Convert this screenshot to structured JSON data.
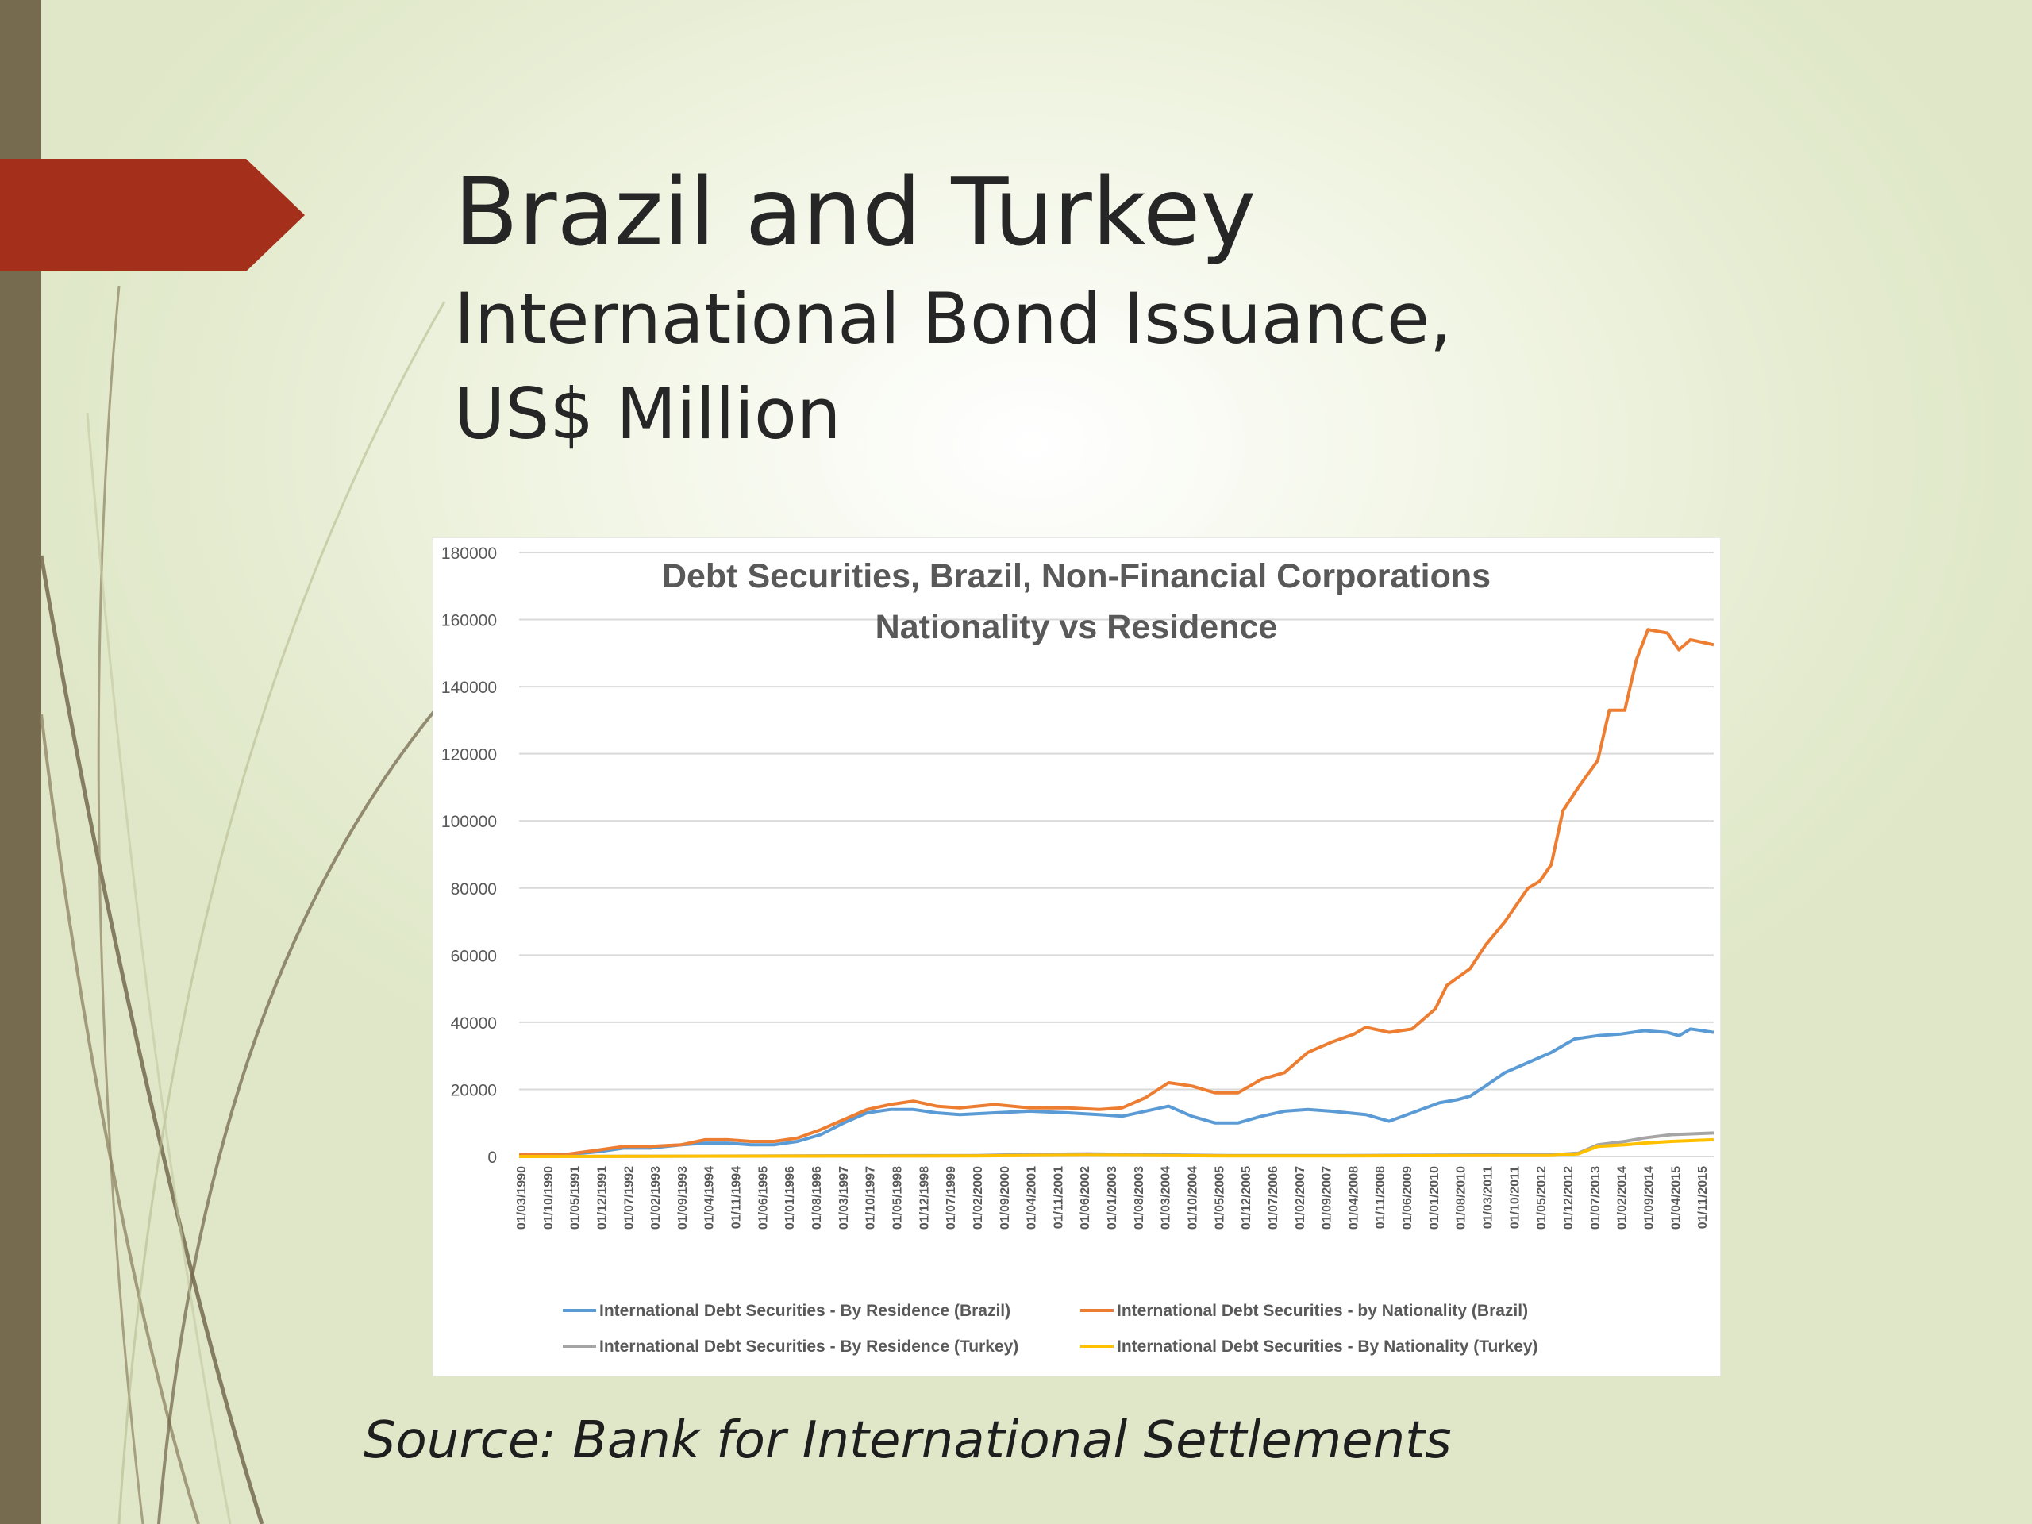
{
  "slide": {
    "title": "Brazil and Turkey",
    "subtitle_line1": "International Bond Issuance,",
    "subtitle_line2": "US$ Million",
    "source": "Source: Bank for International Settlements"
  },
  "colors": {
    "accent_arrow": "#a4301b",
    "side_bar": "#766a4f",
    "series_brazil_residence": "#5b9bd5",
    "series_brazil_nationality": "#ed7d31",
    "series_turkey_residence": "#a5a5a5",
    "series_turkey_nationality": "#ffc000"
  },
  "chart_data": {
    "type": "line",
    "title": "Debt Securities, Brazil, Non-Financial Corporations",
    "subtitle": "Nationality vs Residence",
    "xlabel": "",
    "ylabel": "",
    "ylim": [
      0,
      180000
    ],
    "yticks": [
      0,
      20000,
      40000,
      60000,
      80000,
      100000,
      120000,
      140000,
      160000,
      180000
    ],
    "grid": true,
    "legend_position": "bottom",
    "x_tick_labels": [
      "01/03/1990",
      "01/10/1990",
      "01/05/1991",
      "01/12/1991",
      "01/07/1992",
      "01/02/1993",
      "01/09/1993",
      "01/04/1994",
      "01/11/1994",
      "01/06/1995",
      "01/01/1996",
      "01/08/1996",
      "01/03/1997",
      "01/10/1997",
      "01/05/1998",
      "01/12/1998",
      "01/07/1999",
      "01/02/2000",
      "01/09/2000",
      "01/04/2001",
      "01/11/2001",
      "01/06/2002",
      "01/01/2003",
      "01/08/2003",
      "01/03/2004",
      "01/10/2004",
      "01/05/2005",
      "01/12/2005",
      "01/07/2006",
      "01/02/2007",
      "01/09/2007",
      "01/04/2008",
      "01/11/2008",
      "01/06/2009",
      "01/01/2010",
      "01/08/2010",
      "01/03/2011",
      "01/10/2011",
      "01/05/2012",
      "01/12/2012",
      "01/07/2013",
      "01/02/2014",
      "01/09/2014",
      "01/04/2015",
      "01/11/2015"
    ],
    "x_start": "1990-03",
    "x_end": "2015-12",
    "series": [
      {
        "name": "International Debt Securities - By Residence (Brazil)",
        "color": "#5b9bd5",
        "points": [
          [
            "1990-03",
            500
          ],
          [
            "1991-03",
            600
          ],
          [
            "1991-12",
            1500
          ],
          [
            "1992-06",
            2500
          ],
          [
            "1993-01",
            2500
          ],
          [
            "1993-09",
            3500
          ],
          [
            "1994-03",
            4000
          ],
          [
            "1994-09",
            4000
          ],
          [
            "1995-03",
            3500
          ],
          [
            "1995-09",
            3500
          ],
          [
            "1996-03",
            4500
          ],
          [
            "1996-09",
            6500
          ],
          [
            "1997-03",
            10000
          ],
          [
            "1997-09",
            13000
          ],
          [
            "1998-03",
            14000
          ],
          [
            "1998-09",
            14000
          ],
          [
            "1999-03",
            13000
          ],
          [
            "1999-09",
            12500
          ],
          [
            "2000-06",
            13000
          ],
          [
            "2001-03",
            13500
          ],
          [
            "2002-01",
            13000
          ],
          [
            "2002-09",
            12500
          ],
          [
            "2003-03",
            12000
          ],
          [
            "2003-09",
            13500
          ],
          [
            "2004-03",
            15000
          ],
          [
            "2004-09",
            12000
          ],
          [
            "2005-03",
            10000
          ],
          [
            "2005-09",
            10000
          ],
          [
            "2006-03",
            12000
          ],
          [
            "2006-09",
            13500
          ],
          [
            "2007-03",
            14000
          ],
          [
            "2007-09",
            13500
          ],
          [
            "2008-06",
            12500
          ],
          [
            "2008-12",
            10500
          ],
          [
            "2009-06",
            13000
          ],
          [
            "2010-01",
            16000
          ],
          [
            "2010-06",
            17000
          ],
          [
            "2010-09",
            18000
          ],
          [
            "2011-01",
            21000
          ],
          [
            "2011-06",
            25000
          ],
          [
            "2012-01",
            28500
          ],
          [
            "2012-06",
            31000
          ],
          [
            "2012-12",
            35000
          ],
          [
            "2013-06",
            36000
          ],
          [
            "2013-12",
            36500
          ],
          [
            "2014-06",
            37500
          ],
          [
            "2014-12",
            37000
          ],
          [
            "2015-03",
            36000
          ],
          [
            "2015-06",
            38000
          ],
          [
            "2015-12",
            37000
          ]
        ]
      },
      {
        "name": "International Debt Securities - by Nationality (Brazil)",
        "color": "#ed7d31",
        "points": [
          [
            "1990-03",
            500
          ],
          [
            "1991-03",
            600
          ],
          [
            "1991-12",
            2000
          ],
          [
            "1992-06",
            3000
          ],
          [
            "1993-01",
            3000
          ],
          [
            "1993-09",
            3500
          ],
          [
            "1994-03",
            5000
          ],
          [
            "1994-09",
            5000
          ],
          [
            "1995-03",
            4500
          ],
          [
            "1995-09",
            4500
          ],
          [
            "1996-03",
            5500
          ],
          [
            "1996-09",
            8000
          ],
          [
            "1997-03",
            11000
          ],
          [
            "1997-09",
            14000
          ],
          [
            "1998-03",
            15500
          ],
          [
            "1998-09",
            16500
          ],
          [
            "1999-03",
            15000
          ],
          [
            "1999-09",
            14500
          ],
          [
            "2000-06",
            15500
          ],
          [
            "2001-03",
            14500
          ],
          [
            "2002-01",
            14500
          ],
          [
            "2002-09",
            14000
          ],
          [
            "2003-03",
            14500
          ],
          [
            "2003-09",
            17500
          ],
          [
            "2004-03",
            22000
          ],
          [
            "2004-09",
            21000
          ],
          [
            "2005-03",
            19000
          ],
          [
            "2005-09",
            19000
          ],
          [
            "2006-03",
            23000
          ],
          [
            "2006-09",
            25000
          ],
          [
            "2007-03",
            31000
          ],
          [
            "2007-09",
            34000
          ],
          [
            "2008-03",
            36500
          ],
          [
            "2008-06",
            38500
          ],
          [
            "2008-12",
            37000
          ],
          [
            "2009-06",
            38000
          ],
          [
            "2009-12",
            44000
          ],
          [
            "2010-03",
            51000
          ],
          [
            "2010-09",
            56000
          ],
          [
            "2011-01",
            63000
          ],
          [
            "2011-06",
            70000
          ],
          [
            "2011-12",
            80000
          ],
          [
            "2012-03",
            82000
          ],
          [
            "2012-06",
            87000
          ],
          [
            "2012-09",
            103000
          ],
          [
            "2013-01",
            110000
          ],
          [
            "2013-06",
            118000
          ],
          [
            "2013-09",
            133000
          ],
          [
            "2014-01",
            133000
          ],
          [
            "2014-04",
            148000
          ],
          [
            "2014-07",
            157000
          ],
          [
            "2014-12",
            156000
          ],
          [
            "2015-03",
            151000
          ],
          [
            "2015-06",
            154000
          ],
          [
            "2015-12",
            152500
          ]
        ]
      },
      {
        "name": "International Debt Securities - By Residence (Turkey)",
        "color": "#a5a5a5",
        "points": [
          [
            "1990-03",
            0
          ],
          [
            "2000-01",
            300
          ],
          [
            "2001-01",
            600
          ],
          [
            "2002-06",
            800
          ],
          [
            "2004-01",
            500
          ],
          [
            "2005-06",
            300
          ],
          [
            "2008-01",
            300
          ],
          [
            "2011-06",
            500
          ],
          [
            "2012-06",
            500
          ],
          [
            "2013-01",
            1000
          ],
          [
            "2013-06",
            3500
          ],
          [
            "2014-01",
            4500
          ],
          [
            "2014-06",
            5500
          ],
          [
            "2015-01",
            6500
          ],
          [
            "2015-12",
            7000
          ]
        ]
      },
      {
        "name": "International Debt Securities - By Nationality (Turkey)",
        "color": "#ffc000",
        "points": [
          [
            "1990-03",
            0
          ],
          [
            "2000-01",
            200
          ],
          [
            "2002-06",
            400
          ],
          [
            "2004-01",
            300
          ],
          [
            "2005-06",
            200
          ],
          [
            "2008-01",
            200
          ],
          [
            "2011-06",
            300
          ],
          [
            "2012-06",
            300
          ],
          [
            "2013-01",
            800
          ],
          [
            "2013-06",
            3000
          ],
          [
            "2014-01",
            3500
          ],
          [
            "2014-06",
            4000
          ],
          [
            "2015-01",
            4500
          ],
          [
            "2015-12",
            5000
          ]
        ]
      }
    ]
  }
}
